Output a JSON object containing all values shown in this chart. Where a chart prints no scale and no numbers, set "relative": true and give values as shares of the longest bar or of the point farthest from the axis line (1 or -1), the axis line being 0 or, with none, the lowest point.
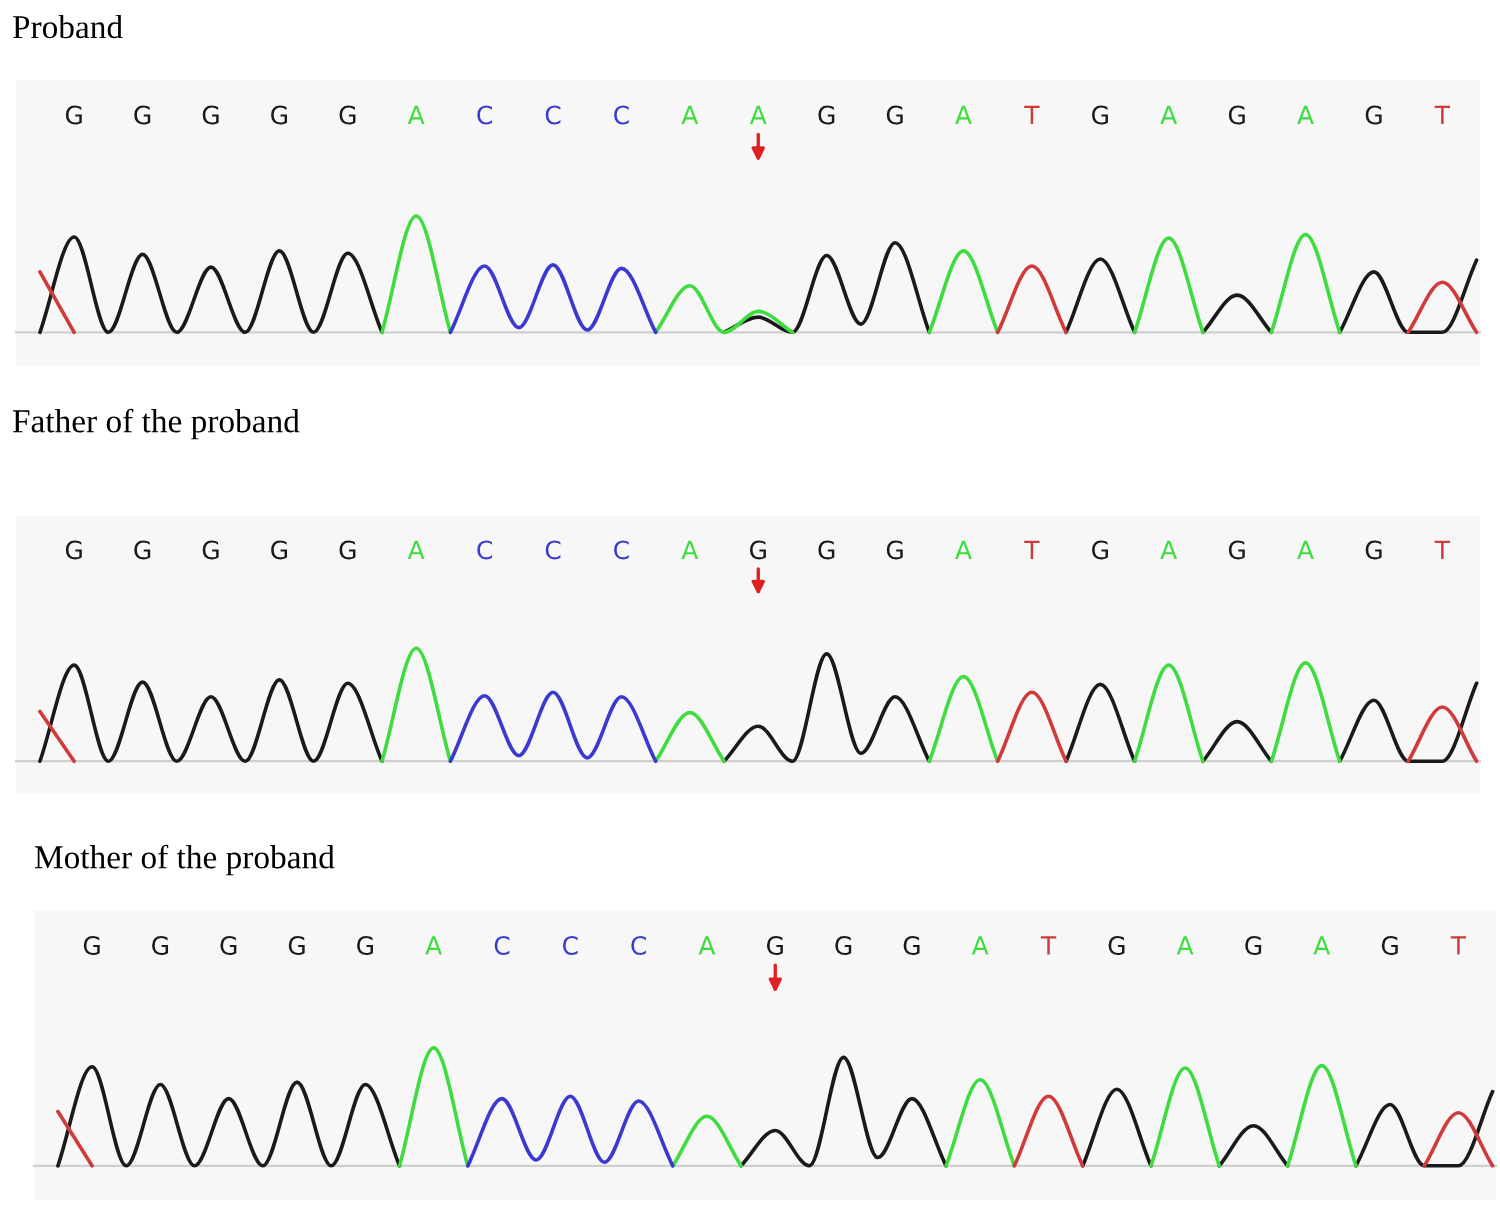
{
  "chart_data": [
    {
      "type": "line",
      "title": "Proband",
      "relative": true,
      "categories": [
        null,
        "G",
        null,
        "G",
        null,
        "G",
        null,
        "G",
        null,
        "G",
        null,
        "A",
        null,
        "C",
        null,
        "C",
        null,
        "C",
        null,
        "A",
        null,
        "A",
        null,
        "G",
        null,
        "G",
        null,
        "A",
        null,
        "T",
        null,
        "G",
        null,
        "A",
        null,
        "G",
        null,
        "A",
        null,
        "G",
        null,
        "T",
        null
      ],
      "series": [
        {
          "color": "#1a1a1a",
          "values": [
            0,
            0.82,
            0,
            0.67,
            0,
            0.56,
            0,
            0.7,
            0,
            0.68,
            0,
            null,
            null,
            null,
            null,
            null,
            null,
            null,
            null,
            null,
            0,
            0.13,
            0,
            0.66,
            0.07,
            0.77,
            0,
            null,
            null,
            null,
            0,
            0.63,
            0,
            null,
            0,
            0.32,
            0,
            null,
            0,
            0.52,
            0,
            0,
            0.62
          ]
        },
        {
          "color": "#3fdc3f",
          "values": [
            null,
            null,
            null,
            null,
            null,
            null,
            null,
            null,
            null,
            null,
            0,
            1,
            0,
            null,
            null,
            null,
            null,
            null,
            0,
            0.4,
            0,
            0.18,
            0,
            null,
            null,
            null,
            0,
            0.7,
            0,
            null,
            null,
            null,
            0,
            0.81,
            0,
            null,
            0,
            0.84,
            0,
            null,
            null,
            null,
            null
          ]
        },
        {
          "color": "#3a3ad0",
          "values": [
            null,
            null,
            null,
            null,
            null,
            null,
            null,
            null,
            null,
            null,
            null,
            null,
            0,
            0.57,
            0.04,
            0.58,
            0.02,
            0.55,
            0,
            null,
            null,
            null,
            null,
            null,
            null,
            null,
            null,
            null,
            null,
            null,
            null,
            null,
            null,
            null,
            null,
            null,
            null,
            null,
            null,
            null,
            null,
            null,
            null
          ]
        },
        {
          "color": "#d03a3a",
          "values": [
            0.52,
            0,
            null,
            null,
            null,
            null,
            null,
            null,
            null,
            null,
            null,
            null,
            null,
            null,
            null,
            null,
            null,
            null,
            null,
            null,
            null,
            null,
            null,
            null,
            null,
            null,
            null,
            null,
            0,
            0.57,
            0,
            null,
            null,
            null,
            null,
            null,
            null,
            null,
            null,
            null,
            0,
            0.43,
            0
          ]
        }
      ]
    },
    {
      "type": "line",
      "title": "Father of the proband",
      "relative": true,
      "categories": [
        null,
        "G",
        null,
        "G",
        null,
        "G",
        null,
        "G",
        null,
        "G",
        null,
        "A",
        null,
        "C",
        null,
        "C",
        null,
        "C",
        null,
        "A",
        null,
        "G",
        null,
        "G",
        null,
        "G",
        null,
        "A",
        null,
        "T",
        null,
        "G",
        null,
        "A",
        null,
        "G",
        null,
        "A",
        null,
        "G",
        null,
        "T",
        null
      ],
      "series": [
        {
          "color": "#1a1a1a",
          "values": [
            0,
            0.85,
            0,
            0.7,
            0,
            0.57,
            0,
            0.72,
            0,
            0.69,
            0,
            null,
            null,
            null,
            null,
            null,
            null,
            null,
            null,
            null,
            0,
            0.31,
            0,
            0.95,
            0.07,
            0.57,
            0,
            null,
            null,
            null,
            0,
            0.68,
            0,
            null,
            0,
            0.35,
            0,
            null,
            0,
            0.54,
            0,
            0,
            0.69
          ]
        },
        {
          "color": "#3fdc3f",
          "values": [
            null,
            null,
            null,
            null,
            null,
            null,
            null,
            null,
            null,
            null,
            0,
            1,
            0,
            null,
            null,
            null,
            null,
            null,
            0,
            0.43,
            0,
            null,
            null,
            null,
            null,
            null,
            0,
            0.75,
            0,
            null,
            null,
            null,
            0,
            0.85,
            0,
            null,
            0,
            0.87,
            0,
            null,
            null,
            null,
            null
          ]
        },
        {
          "color": "#3a3ad0",
          "values": [
            null,
            null,
            null,
            null,
            null,
            null,
            null,
            null,
            null,
            null,
            null,
            null,
            0,
            0.58,
            0.05,
            0.61,
            0.03,
            0.57,
            0,
            null,
            null,
            null,
            null,
            null,
            null,
            null,
            null,
            null,
            null,
            null,
            null,
            null,
            null,
            null,
            null,
            null,
            null,
            null,
            null,
            null,
            null,
            null,
            null
          ]
        },
        {
          "color": "#d03a3a",
          "values": [
            0.44,
            0,
            null,
            null,
            null,
            null,
            null,
            null,
            null,
            null,
            null,
            null,
            null,
            null,
            null,
            null,
            null,
            null,
            null,
            null,
            null,
            null,
            null,
            null,
            null,
            null,
            null,
            null,
            0,
            0.61,
            0,
            null,
            null,
            null,
            null,
            null,
            null,
            null,
            null,
            null,
            0,
            0.48,
            0
          ]
        }
      ]
    },
    {
      "type": "line",
      "title": "Mother of the proband",
      "relative": true,
      "categories": [
        null,
        "G",
        null,
        "G",
        null,
        "G",
        null,
        "G",
        null,
        "G",
        null,
        "A",
        null,
        "C",
        null,
        "C",
        null,
        "C",
        null,
        "A",
        null,
        "G",
        null,
        "G",
        null,
        "G",
        null,
        "A",
        null,
        "T",
        null,
        "G",
        null,
        "A",
        null,
        "G",
        null,
        "A",
        null,
        "G",
        null,
        "T",
        null
      ],
      "series": [
        {
          "color": "#1a1a1a",
          "values": [
            0,
            0.84,
            0,
            0.69,
            0,
            0.57,
            0,
            0.71,
            0,
            0.69,
            0,
            null,
            null,
            null,
            null,
            null,
            null,
            null,
            null,
            null,
            0,
            0.3,
            0,
            0.92,
            0.07,
            0.57,
            0,
            null,
            null,
            null,
            0,
            0.65,
            0,
            null,
            0,
            0.34,
            0,
            null,
            0,
            0.52,
            0,
            0,
            0.63
          ]
        },
        {
          "color": "#3fdc3f",
          "values": [
            null,
            null,
            null,
            null,
            null,
            null,
            null,
            null,
            null,
            null,
            0,
            1,
            0,
            null,
            null,
            null,
            null,
            null,
            0,
            0.42,
            0,
            null,
            null,
            null,
            null,
            null,
            0,
            0.73,
            0,
            null,
            null,
            null,
            0,
            0.83,
            0,
            null,
            0,
            0.85,
            0,
            null,
            null,
            null,
            null
          ]
        },
        {
          "color": "#3a3ad0",
          "values": [
            null,
            null,
            null,
            null,
            null,
            null,
            null,
            null,
            null,
            null,
            null,
            null,
            0,
            0.57,
            0.05,
            0.59,
            0.03,
            0.55,
            0,
            null,
            null,
            null,
            null,
            null,
            null,
            null,
            null,
            null,
            null,
            null,
            null,
            null,
            null,
            null,
            null,
            null,
            null,
            null,
            null,
            null,
            null,
            null,
            null
          ]
        },
        {
          "color": "#d03a3a",
          "values": [
            0.46,
            0,
            null,
            null,
            null,
            null,
            null,
            null,
            null,
            null,
            null,
            null,
            null,
            null,
            null,
            null,
            null,
            null,
            null,
            null,
            null,
            null,
            null,
            null,
            null,
            null,
            null,
            null,
            0,
            0.59,
            0,
            null,
            null,
            null,
            null,
            null,
            null,
            null,
            null,
            null,
            0,
            0.45,
            0
          ]
        }
      ]
    }
  ]
}
